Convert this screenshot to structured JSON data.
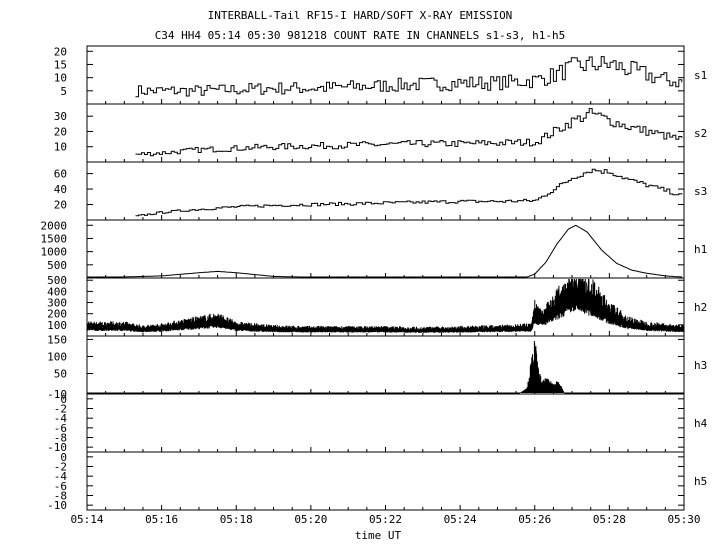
{
  "chart_data": {
    "type": "line",
    "title": "INTERBALL-Tail RF15-I HARD/SOFT X-RAY EMISSION",
    "subtitle": "C34 HH4 05:14 05:30 981218  COUNT RATE IN CHANNELS s1-s3, h1-h5",
    "xlabel": "time UT",
    "x_ticklabels": [
      "05:14",
      "05:16",
      "05:18",
      "05:20",
      "05:22",
      "05:24",
      "05:26",
      "05:28",
      "05:30"
    ],
    "xlim_minutes_after_05_14": [
      0,
      16
    ],
    "panels": [
      {
        "name": "s1",
        "ylim": [
          0,
          22
        ],
        "yticks": [
          "5",
          "10",
          "15",
          "20"
        ],
        "series": {
          "x_minutes": [
            1.3,
            2,
            3,
            4,
            5,
            6,
            7,
            8,
            9,
            10,
            11,
            12,
            12.5,
            13,
            13.5,
            14,
            14.5,
            15,
            15.5,
            16
          ],
          "y": [
            5,
            5,
            5,
            5.5,
            6,
            6,
            6.5,
            7,
            7.5,
            8,
            8,
            9,
            11,
            14,
            15,
            15,
            13,
            11,
            9,
            8
          ]
        }
      },
      {
        "name": "s2",
        "ylim": [
          0,
          38
        ],
        "yticks": [
          "10",
          "20",
          "30"
        ],
        "series": {
          "x_minutes": [
            1.3,
            2,
            3,
            4,
            5,
            6,
            7,
            8,
            9,
            10,
            11,
            12,
            12.5,
            13,
            13.5,
            14,
            14.5,
            15,
            15.5,
            16
          ],
          "y": [
            5,
            6,
            8,
            9,
            10,
            10.5,
            11,
            11.5,
            12,
            12,
            12.5,
            13,
            20,
            27,
            32,
            27,
            23,
            20,
            17,
            14
          ]
        }
      },
      {
        "name": "s3",
        "ylim": [
          0,
          75
        ],
        "yticks": [
          "20",
          "40",
          "60"
        ],
        "series": {
          "x_minutes": [
            1.3,
            2,
            3,
            4,
            5,
            6,
            7,
            8,
            9,
            10,
            11,
            12,
            12.5,
            13,
            13.5,
            14,
            14.5,
            15,
            15.5,
            16
          ],
          "y": [
            5,
            10,
            14,
            17,
            19,
            20,
            21,
            22,
            23,
            24,
            24,
            25,
            40,
            55,
            65,
            62,
            52,
            45,
            38,
            30
          ]
        }
      },
      {
        "name": "h1",
        "ylim": [
          0,
          2200
        ],
        "yticks": [
          "500",
          "1000",
          "1500",
          "2000"
        ],
        "series": {
          "x_minutes": [
            0,
            2,
            3,
            3.5,
            4,
            5,
            6,
            7,
            8,
            9,
            10,
            11,
            11.8,
            12,
            12.3,
            12.6,
            12.9,
            13.1,
            13.4,
            13.8,
            14.2,
            14.6,
            15,
            15.5,
            16
          ],
          "y": [
            0,
            80,
            200,
            250,
            200,
            60,
            30,
            25,
            20,
            18,
            15,
            15,
            40,
            150,
            600,
            1300,
            1850,
            2000,
            1750,
            1050,
            550,
            300,
            180,
            80,
            30
          ]
        }
      },
      {
        "name": "h2",
        "ylim": [
          0,
          520
        ],
        "yticks": [
          "100",
          "200",
          "300",
          "400",
          "500"
        ],
        "series": {
          "x_minutes": [
            0,
            1,
            1.5,
            2,
            3,
            3.5,
            4,
            5,
            6,
            7,
            8,
            9,
            10,
            11,
            11.9,
            12,
            12.2,
            12.5,
            12.8,
            13,
            13.3,
            13.6,
            14,
            14.5,
            15,
            15.5,
            16
          ],
          "y": [
            80,
            80,
            60,
            70,
            110,
            130,
            80,
            60,
            55,
            55,
            55,
            50,
            55,
            60,
            70,
            200,
            150,
            230,
            320,
            390,
            360,
            300,
            190,
            110,
            80,
            70,
            60
          ]
        }
      },
      {
        "name": "h3",
        "ylim": [
          -10,
          160
        ],
        "yticks": [
          "-10",
          "50",
          "100",
          "150"
        ],
        "series": {
          "x_minutes": [
            0,
            11.6,
            11.8,
            11.9,
            12.0,
            12.1,
            12.2,
            12.3,
            12.5,
            12.6,
            12.7,
            12.8,
            16
          ],
          "y": [
            -10,
            -10,
            10,
            80,
            145,
            60,
            25,
            35,
            20,
            30,
            15,
            -10,
            -10
          ]
        }
      },
      {
        "name": "h4",
        "ylim": [
          -11,
          1
        ],
        "yticks": [
          "-10",
          "-8",
          "-6",
          "-4",
          "-2",
          "0"
        ],
        "series": {
          "x_minutes": [],
          "y": []
        }
      },
      {
        "name": "h5",
        "ylim": [
          -11,
          1
        ],
        "yticks": [
          "-10",
          "-8",
          "-6",
          "-4",
          "-2",
          "0"
        ],
        "series": {
          "x_minutes": [],
          "y": []
        }
      }
    ]
  }
}
